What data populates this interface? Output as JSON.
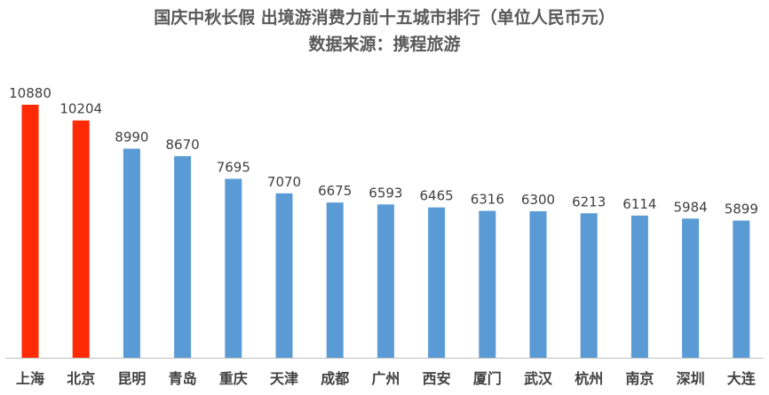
{
  "chart_data": {
    "type": "bar",
    "title": "国庆中秋长假 出境游消费力前十五城市排行（单位人民币元）",
    "subtitle": "数据来源：携程旅游",
    "categories": [
      "上海",
      "北京",
      "昆明",
      "青岛",
      "重庆",
      "天津",
      "成都",
      "广州",
      "西安",
      "厦门",
      "武汉",
      "杭州",
      "南京",
      "深圳",
      "大连"
    ],
    "values": [
      10880,
      10204,
      8990,
      8670,
      7695,
      7070,
      6675,
      6593,
      6465,
      6316,
      6300,
      6213,
      6114,
      5984,
      5899
    ],
    "highlight_categories": [
      "上海",
      "北京"
    ],
    "ylim": [
      0,
      12000
    ],
    "grid": false,
    "xlabel": "",
    "ylabel": "",
    "colors": {
      "highlight": "#ff2a06",
      "default": "#5b9bd5",
      "axis": "#bfbfbf"
    }
  }
}
